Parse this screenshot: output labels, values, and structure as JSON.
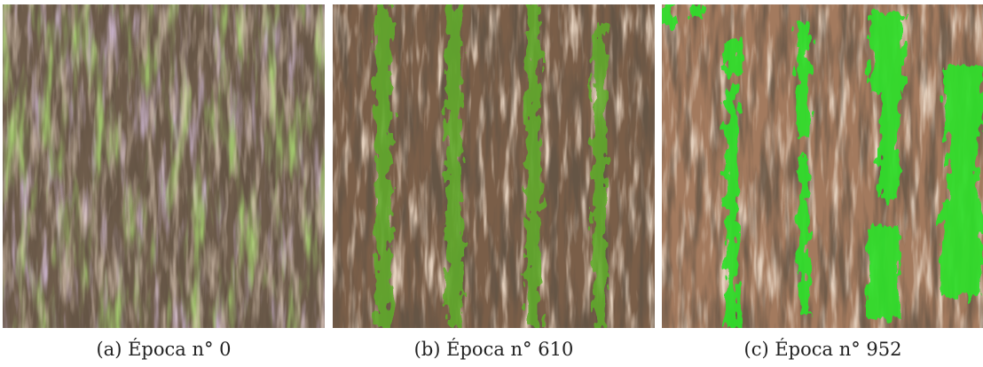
{
  "figure": {
    "panels": [
      {
        "caption": "(a) Época n° 0"
      },
      {
        "caption": "(b) Época n° 610"
      },
      {
        "caption": "(c) Época n° 952"
      }
    ]
  }
}
